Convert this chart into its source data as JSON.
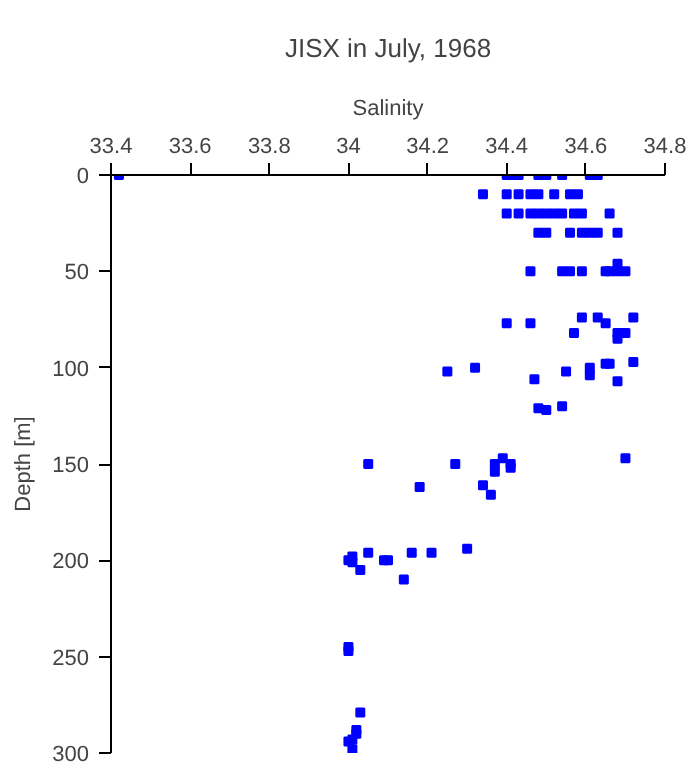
{
  "chart_data": {
    "type": "scatter",
    "title": "JISX in July, 1968",
    "xlabel": "Salinity",
    "ylabel": "Depth [m]",
    "xlim": [
      33.4,
      34.8
    ],
    "xticks": [
      33.4,
      33.6,
      33.8,
      34,
      34.2,
      34.4,
      34.6,
      34.8
    ],
    "ylim": [
      300,
      0
    ],
    "yticks": [
      0,
      50,
      100,
      150,
      200,
      250,
      300
    ],
    "grid": false,
    "marker": "square",
    "series": [
      {
        "color": "#0000ff",
        "x": [
          33.42,
          34.4,
          34.41,
          34.43,
          34.48,
          34.5,
          34.54,
          34.61,
          34.63,
          34.34,
          34.4,
          34.43,
          34.46,
          34.48,
          34.52,
          34.56,
          34.58,
          34.4,
          34.43,
          34.46,
          34.48,
          34.5,
          34.52,
          34.54,
          34.57,
          34.59,
          34.66,
          34.48,
          34.5,
          34.56,
          34.59,
          34.61,
          34.63,
          34.68,
          34.68,
          34.46,
          34.54,
          34.56,
          34.59,
          34.65,
          34.66,
          34.68,
          34.7,
          34.59,
          34.63,
          34.72,
          34.4,
          34.46,
          34.65,
          34.57,
          34.68,
          34.7,
          34.68,
          34.72,
          34.65,
          34.66,
          34.32,
          34.61,
          34.25,
          34.55,
          34.61,
          34.47,
          34.68,
          34.54,
          34.48,
          34.5,
          34.39,
          34.7,
          34.05,
          34.27,
          34.37,
          34.41,
          34.41,
          34.37,
          34.34,
          34.18,
          34.36,
          34.3,
          34.05,
          34.16,
          34.21,
          34.01,
          34.0,
          34.09,
          34.1,
          34.01,
          34.03,
          34.14,
          34.0,
          34.0,
          34.03,
          34.02,
          34.02,
          34.01,
          34.0,
          34.01
        ],
        "values": [
          0,
          0,
          0,
          0,
          0,
          0,
          0,
          0,
          0,
          10,
          10,
          10,
          10,
          10,
          10,
          10,
          10,
          20,
          20,
          20,
          20,
          20,
          20,
          20,
          20,
          20,
          20,
          30,
          30,
          30,
          30,
          30,
          30,
          30,
          46,
          50,
          50,
          50,
          50,
          50,
          50,
          50,
          50,
          74,
          74,
          74,
          77,
          77,
          77,
          82,
          82,
          82,
          85,
          97,
          98,
          98,
          100,
          100,
          102,
          102,
          104,
          106,
          107,
          120,
          121,
          122,
          147,
          147,
          150,
          150,
          150,
          150,
          152,
          154,
          161,
          162,
          166,
          194,
          196,
          196,
          196,
          198,
          200,
          200,
          200,
          201,
          205,
          210,
          245,
          247,
          279,
          288,
          290,
          293,
          294,
          298
        ]
      }
    ]
  }
}
